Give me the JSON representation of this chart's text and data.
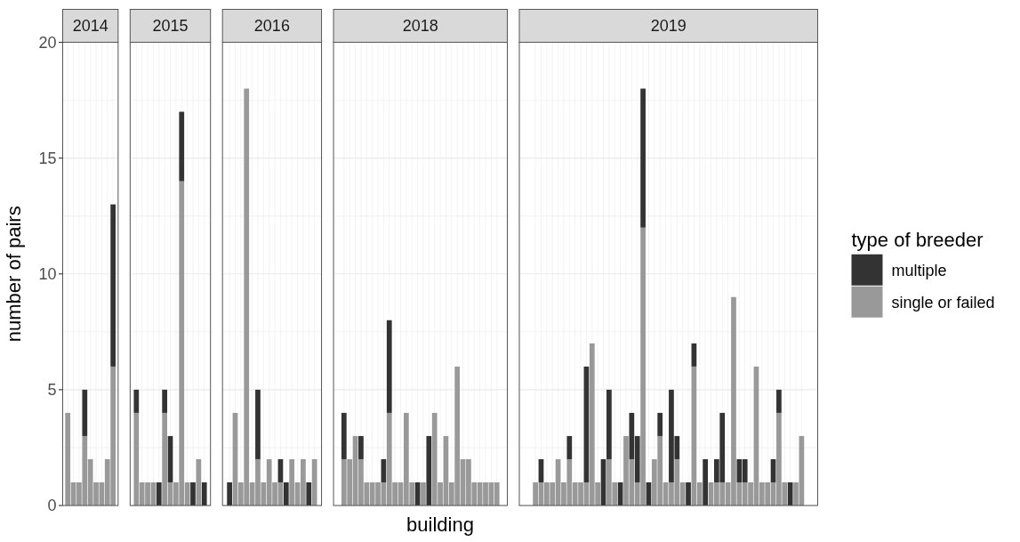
{
  "chart_data": [
    {
      "type": "bar",
      "title": "2014",
      "ylabel": "number of pairs",
      "legend": "right",
      "legend_title": "type of breeder",
      "categories": [
        null,
        null,
        null,
        null,
        null,
        null,
        null,
        null,
        null
      ],
      "stacked": true,
      "ylim": [
        0,
        20
      ],
      "yticks": [
        0,
        5,
        10,
        15,
        20
      ],
      "tick_labels": "y",
      "grid": true,
      "series": [
        {
          "name": "single or failed",
          "color": "#999999",
          "values": [
            4,
            1,
            1,
            3,
            2,
            1,
            1,
            2,
            6
          ]
        },
        {
          "name": "multiple",
          "color": "#333333",
          "values": [
            null,
            null,
            null,
            2,
            null,
            null,
            null,
            null,
            7
          ]
        }
      ]
    },
    {
      "type": "bar",
      "title": "2015",
      "categories": [
        null,
        null,
        null,
        null,
        null,
        null,
        null,
        null,
        null,
        null,
        null,
        null,
        null
      ],
      "stacked": true,
      "ylim": [
        0,
        20
      ],
      "yticks": [
        0,
        5,
        10,
        15,
        20
      ],
      "tick_labels": false,
      "grid": true,
      "series": [
        {
          "color": "#999999",
          "values": [
            4,
            1,
            1,
            1,
            null,
            4,
            1,
            1,
            14,
            1,
            null,
            2,
            null
          ]
        },
        {
          "color": "#333333",
          "values": [
            1,
            null,
            null,
            null,
            1,
            1,
            2,
            null,
            3,
            null,
            1,
            null,
            1
          ]
        }
      ]
    },
    {
      "type": "bar",
      "title": "2016",
      "categories": [
        null,
        null,
        null,
        null,
        null,
        null,
        null,
        null,
        null,
        null,
        null,
        null,
        null,
        null,
        null,
        null
      ],
      "stacked": true,
      "ylim": [
        0,
        20
      ],
      "yticks": [
        0,
        5,
        10,
        15,
        20
      ],
      "tick_labels": false,
      "grid": true,
      "series": [
        {
          "color": "#999999",
          "values": [
            null,
            4,
            1,
            18,
            1,
            2,
            1,
            2,
            1,
            1,
            null,
            2,
            1,
            2,
            null,
            2
          ]
        },
        {
          "color": "#333333",
          "values": [
            1,
            null,
            null,
            null,
            null,
            3,
            null,
            null,
            null,
            1,
            1,
            null,
            null,
            null,
            1,
            null
          ]
        }
      ]
    },
    {
      "type": "bar",
      "title": "2018",
      "xlabel": "building",
      "categories": [
        null,
        null,
        null,
        null,
        null,
        null,
        null,
        null,
        null,
        null,
        null,
        null,
        null,
        null,
        null,
        null,
        null,
        null,
        null,
        null,
        null,
        null,
        null,
        null,
        null,
        null,
        null,
        null
      ],
      "stacked": true,
      "ylim": [
        0,
        20
      ],
      "yticks": [
        0,
        5,
        10,
        15,
        20
      ],
      "tick_labels": false,
      "grid": true,
      "series": [
        {
          "color": "#999999",
          "values": [
            2,
            2,
            3,
            2,
            1,
            1,
            1,
            1,
            4,
            1,
            1,
            4,
            1,
            null,
            1,
            null,
            4,
            1,
            3,
            1,
            6,
            2,
            2,
            1,
            1,
            1,
            1,
            1
          ]
        },
        {
          "color": "#333333",
          "values": [
            2,
            null,
            null,
            1,
            null,
            null,
            null,
            1,
            4,
            null,
            null,
            null,
            null,
            1,
            null,
            3,
            null,
            null,
            null,
            null,
            null,
            null,
            null,
            null,
            null,
            null,
            null,
            null
          ]
        }
      ]
    },
    {
      "type": "bar",
      "title": "2019",
      "categories": [
        null,
        null,
        null,
        null,
        null,
        null,
        null,
        null,
        null,
        null,
        null,
        null,
        null,
        null,
        null,
        null,
        null,
        null,
        null,
        null,
        null,
        null,
        null,
        null,
        null,
        null,
        null,
        null,
        null,
        null,
        null,
        null,
        null,
        null,
        null,
        null,
        null,
        null,
        null,
        null,
        null,
        null,
        null,
        null,
        null,
        null,
        null,
        null
      ],
      "stacked": true,
      "ylim": [
        0,
        20
      ],
      "yticks": [
        0,
        5,
        10,
        15,
        20
      ],
      "tick_labels": false,
      "grid": true,
      "series": [
        {
          "color": "#999999",
          "values": [
            1,
            1,
            1,
            1,
            2,
            1,
            2,
            1,
            1,
            1,
            7,
            1,
            null,
            2,
            1,
            null,
            3,
            2,
            1,
            12,
            null,
            2,
            3,
            1,
            1,
            2,
            1,
            null,
            6,
            1,
            null,
            1,
            1,
            1,
            1,
            9,
            1,
            1,
            1,
            6,
            1,
            1,
            1,
            4,
            1,
            null,
            1,
            3
          ]
        },
        {
          "color": "#333333",
          "values": [
            null,
            1,
            null,
            null,
            null,
            null,
            1,
            null,
            null,
            5,
            null,
            null,
            2,
            3,
            null,
            1,
            null,
            2,
            2,
            6,
            1,
            null,
            1,
            null,
            4,
            1,
            null,
            1,
            1,
            null,
            2,
            null,
            1,
            3,
            null,
            null,
            1,
            1,
            null,
            null,
            null,
            null,
            1,
            1,
            null,
            1,
            null,
            null
          ]
        }
      ]
    }
  ]
}
